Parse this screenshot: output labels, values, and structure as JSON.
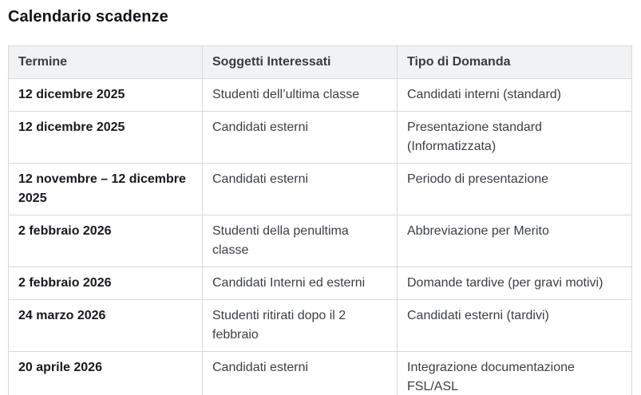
{
  "page": {
    "title": "Calendario scadenze"
  },
  "table": {
    "columns": [
      "Termine",
      "Soggetti Interessati",
      "Tipo di Domanda"
    ],
    "rows": [
      {
        "termine": "12 dicembre 2025",
        "soggetti": "Studenti dell’ultima classe",
        "tipo": "Candidati interni (standard)"
      },
      {
        "termine": "12 dicembre 2025",
        "soggetti": "Candidati esterni",
        "tipo": "Presentazione standard (Informatizzata)"
      },
      {
        "termine": "12 novembre – 12 dicembre 2025",
        "soggetti": "Candidati esterni",
        "tipo": "Periodo di presentazione"
      },
      {
        "termine": "2 febbraio 2026",
        "soggetti": "Studenti della penultima classe",
        "tipo": "Abbreviazione per Merito"
      },
      {
        "termine": "2 febbraio 2026",
        "soggetti": "Candidati Interni ed esterni",
        "tipo": "Domande tardive (per gravi motivi)"
      },
      {
        "termine": "24 marzo 2026",
        "soggetti": "Studenti ritirati dopo il 2 febbraio",
        "tipo": "Candidati esterni (tardivi)"
      },
      {
        "termine": "20 aprile 2026",
        "soggetti": "Candidati esterni",
        "tipo": "Integrazione documentazione FSL/ASL"
      }
    ]
  },
  "colors": {
    "header_bg": "#f1f2f3",
    "border": "#d7d9db",
    "title_text": "#111418",
    "date_text": "#16191d",
    "body_text": "#3a3f44"
  }
}
